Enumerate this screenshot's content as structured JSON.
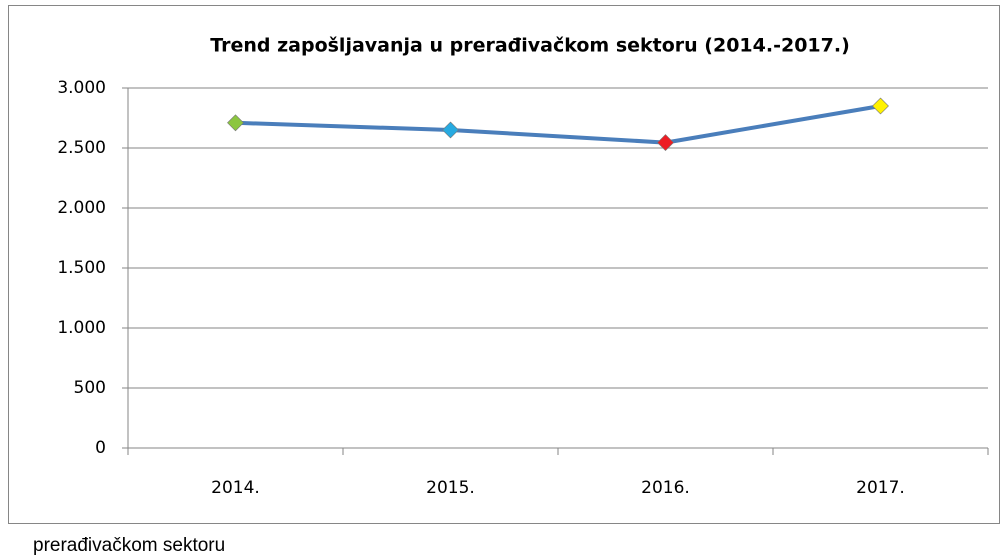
{
  "chart_data": {
    "type": "line",
    "title": "Trend zapošljavanja u prerađivačkom sektoru (2014.-2017.)",
    "categories": [
      "2014.",
      "2015.",
      "2016.",
      "2017."
    ],
    "values": [
      2710,
      2650,
      2545,
      2850
    ],
    "color": "#4a7ebb",
    "marker_colors": [
      "#8cc63f",
      "#27aae1",
      "#ed1c24",
      "#fff200"
    ],
    "ylim": [
      0,
      3000
    ],
    "yticks": [
      0,
      500,
      {
        "value": 1000,
        "label": "1.000"
      },
      {
        "value": 1500,
        "label": "1.500"
      },
      {
        "value": 2000,
        "label": "2.000"
      },
      {
        "value": 2500,
        "label": "2.500"
      },
      {
        "value": 3000,
        "label": "3.000"
      }
    ],
    "grid": true
  },
  "caption": "prerađivačkom sektoru"
}
